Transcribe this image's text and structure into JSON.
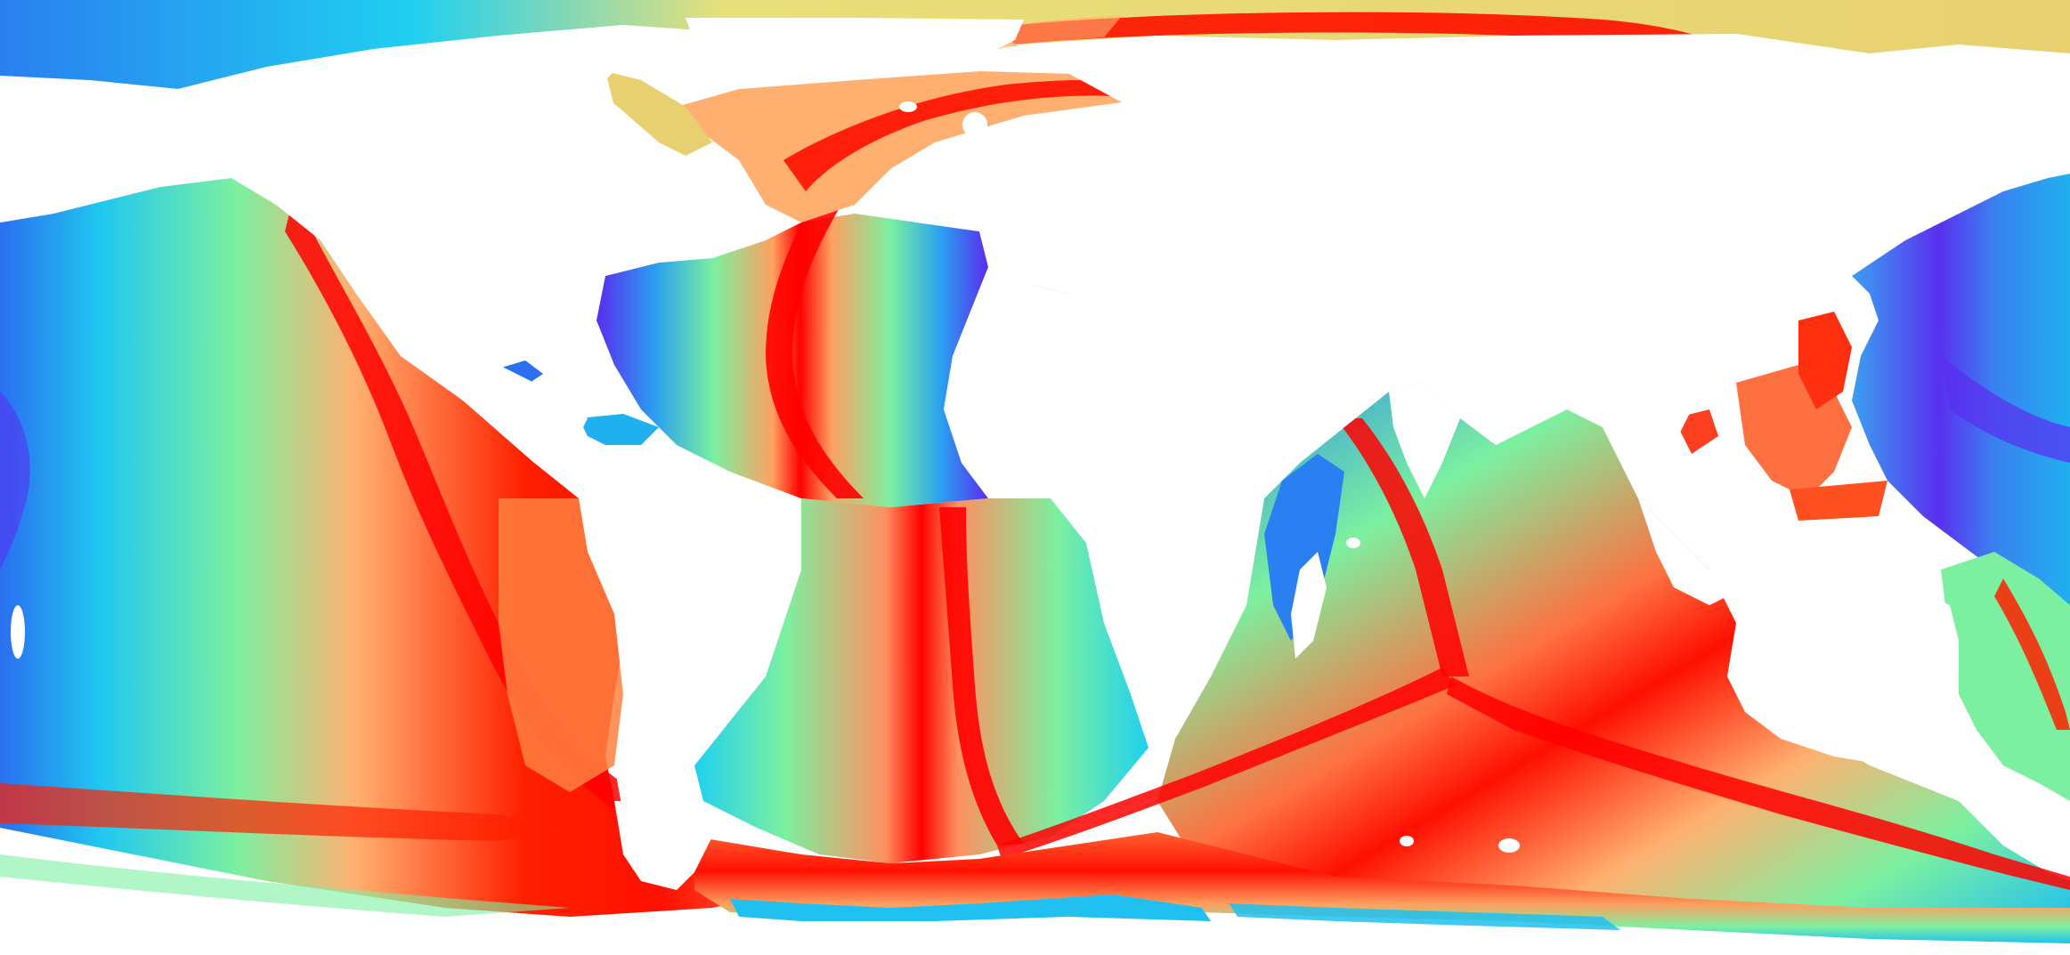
{
  "map": {
    "projection": "equirectangular",
    "content": "seafloor age",
    "colors": {
      "youngest": "#ff0000",
      "orange": "#ff8c3c",
      "yellow": "#e8e07a",
      "green": "#7cf0a0",
      "cyan": "#20d8f0",
      "blue": "#2a7ff0",
      "oldest": "#5a2cf0",
      "land": "#ffffff"
    }
  }
}
